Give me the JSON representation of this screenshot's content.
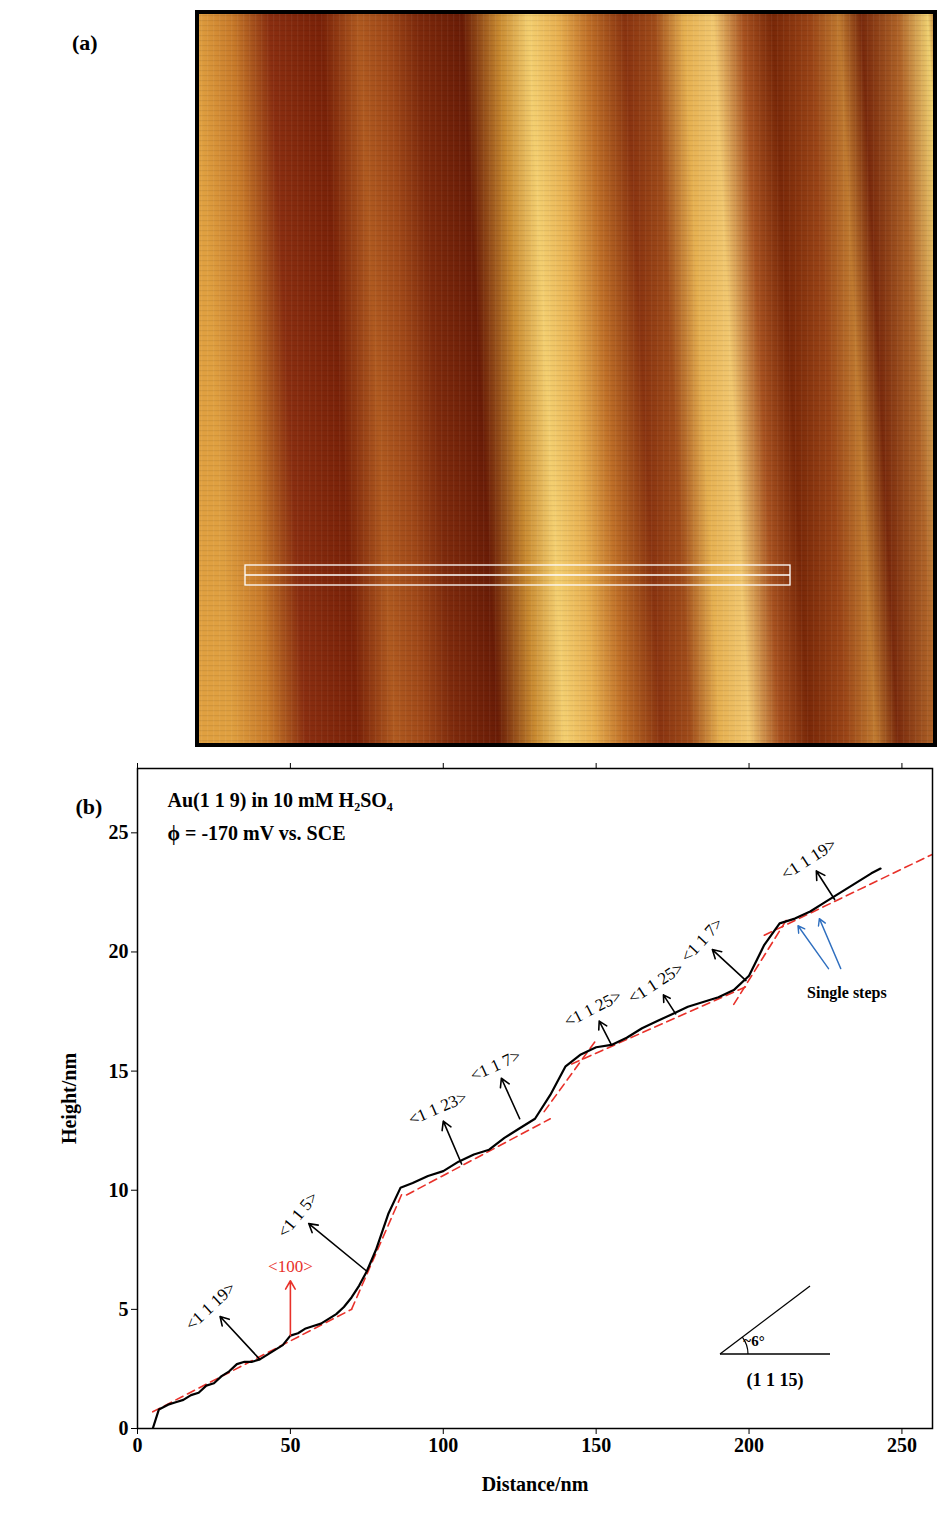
{
  "panel_a": {
    "label": "(a)",
    "type": "image"
  },
  "chart_data": {
    "type": "line",
    "label": "(b)",
    "text_lines": [
      "Au(1 1 9) in 10 mM H₂SO₄",
      "ϕ = -170 mV vs. SCE"
    ],
    "xlabel": "Distance/nm",
    "ylabel": "Height/nm",
    "color": "#000000",
    "line_style": "solid",
    "marker": "none",
    "grid": false,
    "xlim": [
      0,
      260
    ],
    "ylim": [
      0,
      27.7
    ],
    "xticks": [
      0,
      50,
      100,
      150,
      200,
      250
    ],
    "yticks": [
      0,
      5,
      10,
      15,
      20,
      25
    ],
    "x": [
      5,
      7,
      10,
      12.5,
      15,
      17.5,
      20,
      22.5,
      25,
      27.5,
      30,
      32.5,
      35,
      37.5,
      40,
      42.5,
      45,
      47.5,
      50,
      52.5,
      55,
      57.5,
      60,
      62.5,
      65,
      67.5,
      70,
      72.5,
      75,
      78,
      82,
      86,
      90,
      95,
      100,
      105,
      110,
      115,
      120,
      125,
      130,
      135,
      140,
      145,
      150,
      155,
      160,
      165,
      170,
      175,
      180,
      185,
      190,
      195,
      200,
      205,
      210,
      215,
      220,
      225,
      230,
      235,
      240,
      243
    ],
    "values": [
      0,
      0.8,
      1.0,
      1.1,
      1.2,
      1.4,
      1.5,
      1.8,
      1.9,
      2.2,
      2.4,
      2.7,
      2.8,
      2.8,
      2.9,
      3.1,
      3.3,
      3.5,
      3.9,
      4.0,
      4.2,
      4.3,
      4.4,
      4.6,
      4.8,
      5.1,
      5.5,
      6.0,
      6.6,
      7.5,
      9.0,
      10.1,
      10.3,
      10.6,
      10.8,
      11.2,
      11.5,
      11.7,
      12.2,
      12.6,
      13.0,
      14.0,
      15.2,
      15.7,
      16.0,
      16.1,
      16.4,
      16.8,
      17.1,
      17.4,
      17.7,
      17.9,
      18.1,
      18.4,
      19.0,
      20.3,
      21.2,
      21.4,
      21.7,
      22.1,
      22.5,
      22.9,
      23.3,
      23.5
    ],
    "fit_lines": {
      "color": "#e8312a",
      "line_style": "dashed",
      "segments": [
        {
          "x": [
            5,
            70
          ],
          "y": [
            0.7,
            5.0
          ]
        },
        {
          "x": [
            70,
            87
          ],
          "y": [
            5.0,
            10.0
          ]
        },
        {
          "x": [
            88,
            135
          ],
          "y": [
            9.8,
            13.0
          ]
        },
        {
          "x": [
            133,
            150
          ],
          "y": [
            13.3,
            16.3
          ]
        },
        {
          "x": [
            142,
            200
          ],
          "y": [
            15.3,
            18.6
          ]
        },
        {
          "x": [
            195,
            213
          ],
          "y": [
            17.8,
            21.5
          ]
        },
        {
          "x": [
            205,
            260
          ],
          "y": [
            20.7,
            24.1
          ]
        }
      ]
    },
    "annotations": [
      {
        "text": "<1 1 19>",
        "tail": [
          40,
          2.9
        ],
        "tip": [
          27,
          4.7
        ],
        "color": "#000000"
      },
      {
        "text": "<100>",
        "tail": [
          50,
          3.9
        ],
        "tip": [
          50,
          6.2
        ],
        "color": "#e8312a"
      },
      {
        "text": "<1 1 5>",
        "tail": [
          75,
          6.6
        ],
        "tip": [
          56,
          8.6
        ],
        "color": "#000000"
      },
      {
        "text": "<1 1 23>",
        "tail": [
          106,
          11.1
        ],
        "tip": [
          100,
          12.9
        ],
        "color": "#000000"
      },
      {
        "text": "<1 1 7>",
        "tail": [
          125,
          13.0
        ],
        "tip": [
          119,
          14.7
        ],
        "color": "#000000"
      },
      {
        "text": "<1 1 25>",
        "tail": [
          155,
          16.1
        ],
        "tip": [
          151,
          17.1
        ],
        "color": "#000000"
      },
      {
        "text": "<1 1 25>",
        "tail": [
          176,
          17.4
        ],
        "tip": [
          172,
          18.2
        ],
        "color": "#000000"
      },
      {
        "text": "<1 1 7>",
        "tail": [
          199,
          18.8
        ],
        "tip": [
          188,
          20.1
        ],
        "color": "#000000"
      },
      {
        "text": "<1 1 19>",
        "tail": [
          228,
          22.2
        ],
        "tip": [
          222,
          23.4
        ],
        "color": "#000000"
      }
    ],
    "callout": {
      "text": "Single steps",
      "color": "#2f6fbf",
      "x": 232,
      "y": 18.3,
      "tails": [
        [
          226,
          19.3
        ],
        [
          230,
          19.3
        ]
      ],
      "tips": [
        [
          216,
          21.1
        ],
        [
          223,
          21.4
        ]
      ]
    },
    "inset": {
      "angle_label": "~6°",
      "plane_label": "(1 1 15)"
    }
  }
}
